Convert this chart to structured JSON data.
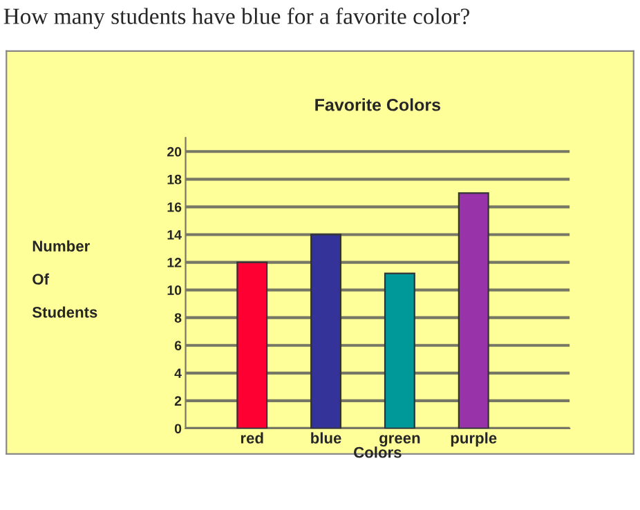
{
  "chart_data": {
    "type": "bar",
    "title": "Favorite Colors",
    "xlabel": "Colors",
    "ylabel": "Number\n\nOf\n\nStudents",
    "annotations": [
      "How many students have blue for a favorite color?"
    ],
    "categories": [
      "red",
      "blue",
      "green",
      "purple"
    ],
    "values": [
      12,
      14,
      11.2,
      17
    ],
    "colors": [
      "#ff0033",
      "#333399",
      "#009999",
      "#9933aa"
    ],
    "ylim": [
      0,
      21
    ],
    "yticks": [
      0,
      2,
      4,
      6,
      8,
      10,
      12,
      14,
      16,
      18,
      20
    ],
    "grid": "y"
  }
}
